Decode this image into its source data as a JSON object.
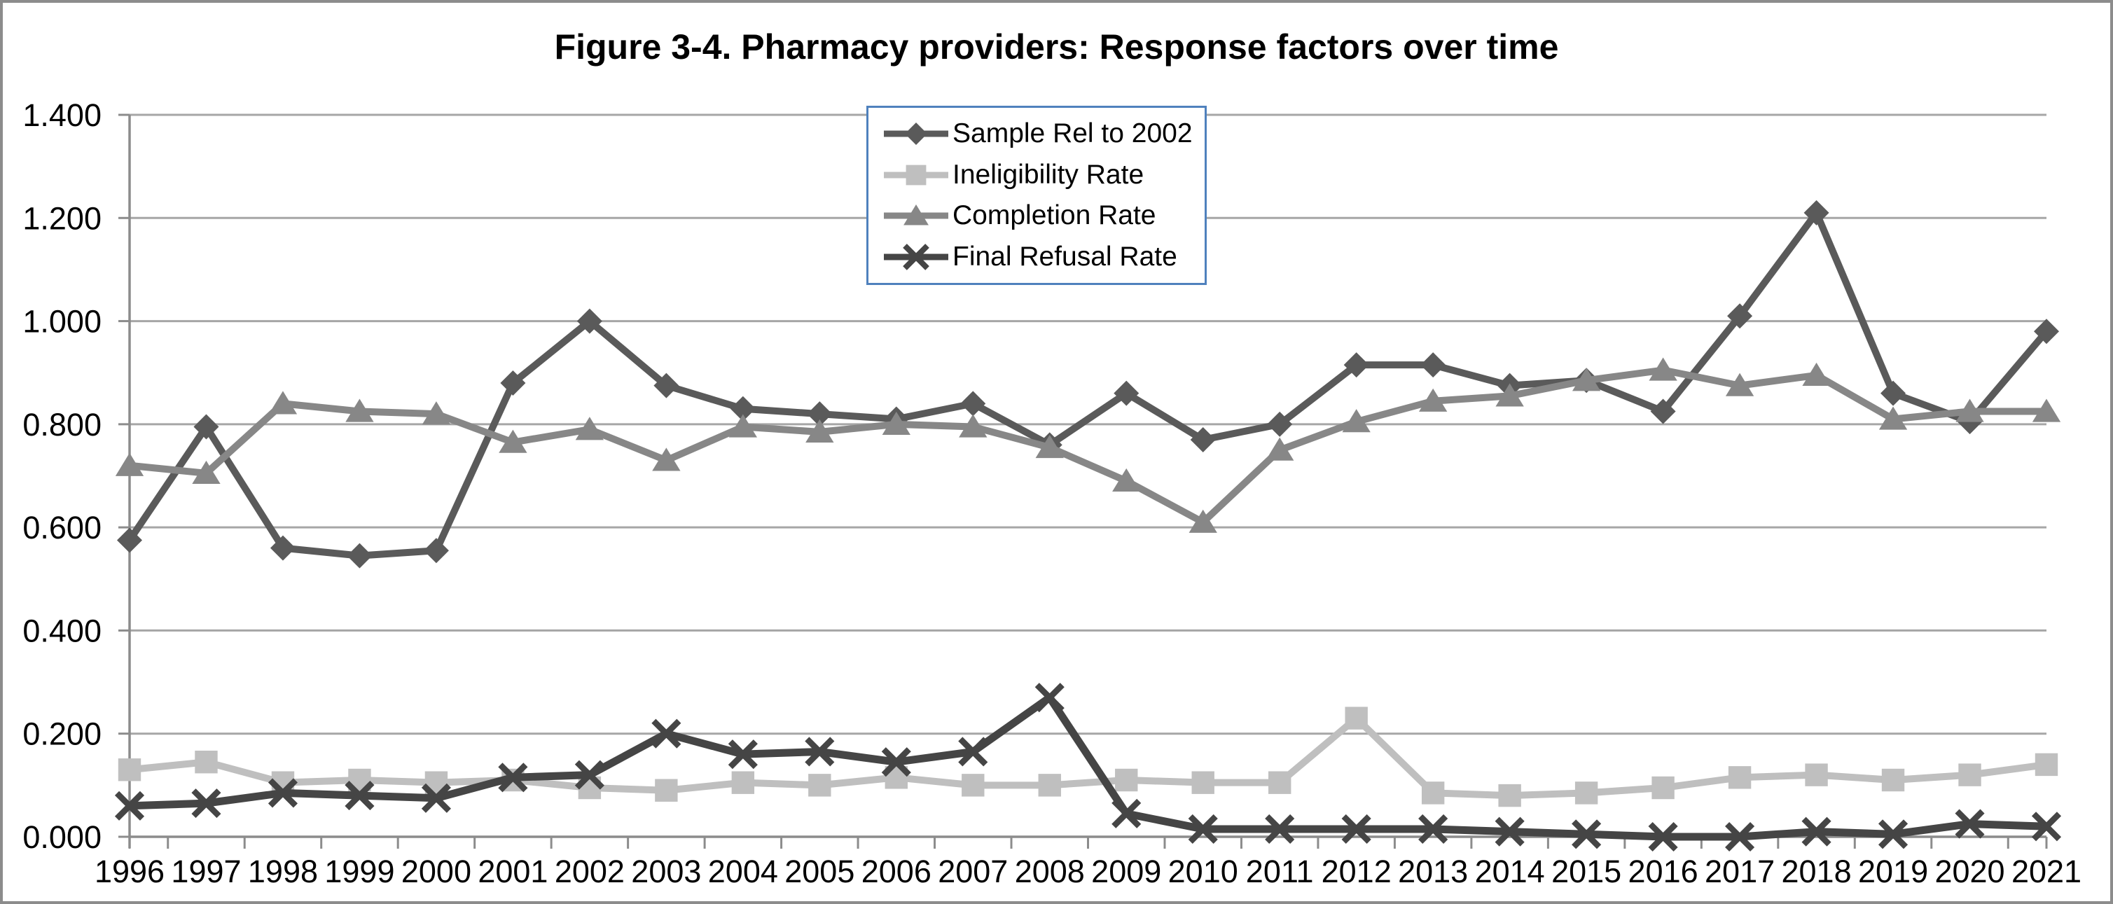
{
  "title": "Figure 3-4. Pharmacy providers: Response factors over time",
  "chart_data": {
    "type": "line",
    "title": "Figure 3-4. Pharmacy providers: Response factors over time",
    "xlabel": "",
    "ylabel": "",
    "categories": [
      "1996",
      "1997",
      "1998",
      "1999",
      "2000",
      "2001",
      "2002",
      "2003",
      "2004",
      "2005",
      "2006",
      "2007",
      "2008",
      "2009",
      "2010",
      "2011",
      "2012",
      "2013",
      "2014",
      "2015",
      "2016",
      "2017",
      "2018",
      "2019",
      "2020",
      "2021"
    ],
    "series": [
      {
        "name": "Sample Rel to 2002",
        "marker": "diamond",
        "color": "#5a5a5a",
        "values": [
          0.575,
          0.795,
          0.56,
          0.545,
          0.555,
          0.88,
          1.0,
          0.875,
          0.83,
          0.82,
          0.81,
          0.84,
          0.76,
          0.86,
          0.77,
          0.8,
          0.915,
          0.915,
          0.875,
          0.885,
          0.825,
          1.01,
          1.21,
          0.86,
          0.805,
          0.98
        ]
      },
      {
        "name": "Ineligibility Rate",
        "marker": "square",
        "color": "#bfbfbf",
        "values": [
          0.13,
          0.145,
          0.105,
          0.11,
          0.105,
          0.11,
          0.095,
          0.09,
          0.105,
          0.1,
          0.115,
          0.1,
          0.1,
          0.11,
          0.105,
          0.105,
          0.23,
          0.085,
          0.08,
          0.085,
          0.095,
          0.115,
          0.12,
          0.11,
          0.12,
          0.14
        ]
      },
      {
        "name": "Completion Rate",
        "marker": "triangle",
        "color": "#878787",
        "values": [
          0.72,
          0.705,
          0.84,
          0.825,
          0.82,
          0.765,
          0.79,
          0.73,
          0.795,
          0.785,
          0.8,
          0.795,
          0.755,
          0.69,
          0.61,
          0.75,
          0.805,
          0.845,
          0.855,
          0.885,
          0.905,
          0.875,
          0.895,
          0.81,
          0.825,
          0.825
        ]
      },
      {
        "name": "Final Refusal Rate",
        "marker": "x",
        "color": "#454545",
        "values": [
          0.06,
          0.065,
          0.085,
          0.08,
          0.075,
          0.115,
          0.12,
          0.2,
          0.16,
          0.165,
          0.145,
          0.165,
          0.27,
          0.045,
          0.015,
          0.015,
          0.015,
          0.015,
          0.01,
          0.005,
          0.0,
          0.0,
          0.01,
          0.005,
          0.025,
          0.02
        ]
      }
    ],
    "ylim": [
      0,
      1.4
    ],
    "y_step": 0.2,
    "y_tick_decimals": 3,
    "y_tick_labels": [
      "0.000",
      "0.200",
      "0.400",
      "0.600",
      "0.800",
      "1.000",
      "1.200",
      "1.400"
    ],
    "grid": "horizontal",
    "legend_position": "top-center",
    "colors": {
      "gridline": "#a6a6a6",
      "axis": "#8c8c8c",
      "legend_border": "#4f81bd",
      "frame_border": "#8c8c8c",
      "text": "#000000",
      "background": "#ffffff"
    }
  }
}
